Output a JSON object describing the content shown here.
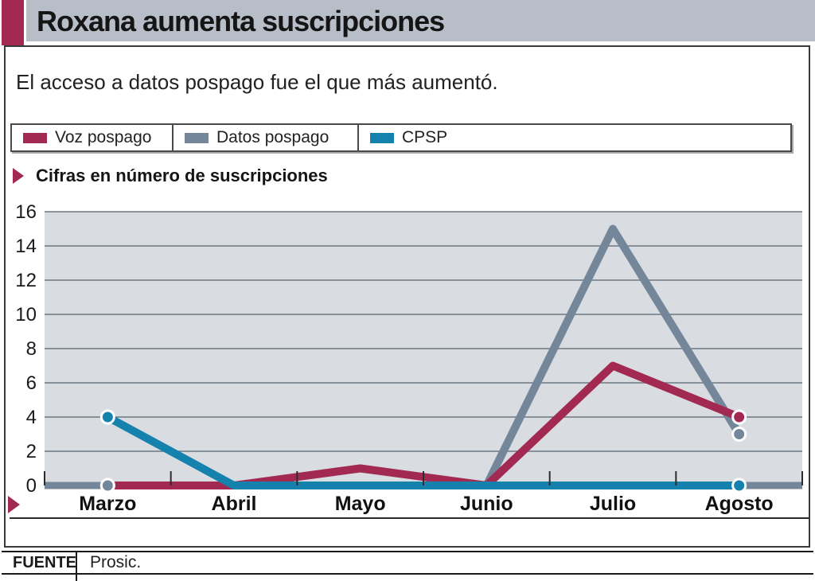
{
  "header": {
    "title": "Roxana aumenta suscripciones"
  },
  "subtitle": "El acceso a datos pospago fue el que más aumentó.",
  "legend": {
    "items": [
      {
        "label": "Voz pospago",
        "color": "#a22a52"
      },
      {
        "label": "Datos pospago",
        "color": "#74879a"
      },
      {
        "label": "CPSP",
        "color": "#1581ad"
      }
    ]
  },
  "chart_note": "Cifras en número de suscripciones",
  "chart_data": {
    "type": "line",
    "title": "Roxana aumenta suscripciones",
    "categories": [
      "Marzo",
      "Abril",
      "Mayo",
      "Junio",
      "Julio",
      "Agosto"
    ],
    "series": [
      {
        "name": "Voz pospago",
        "color": "#a22a52",
        "values": [
          0,
          0,
          1,
          0,
          7,
          4
        ]
      },
      {
        "name": "Datos pospago",
        "color": "#74879a",
        "values": [
          0,
          0,
          0,
          0,
          15,
          3
        ]
      },
      {
        "name": "CPSP",
        "color": "#1581ad",
        "values": [
          4,
          0,
          0,
          0,
          0,
          0
        ]
      }
    ],
    "ylim": [
      0,
      16
    ],
    "ytick_step": 2,
    "xlabel": "",
    "ylabel": "",
    "grid": true,
    "legend_position": "top",
    "markers": "endpoints",
    "draw_order": [
      "Datos pospago",
      "Voz pospago",
      "CPSP"
    ]
  },
  "footer": {
    "source_label": "FUENTE",
    "source_value": "Prosic."
  },
  "colors": {
    "accent_maroon": "#a22a52",
    "series_gray": "#74879a",
    "series_teal": "#1581ad",
    "title_bar_bg": "#b8bec8",
    "plot_bg": "#d9dce1",
    "grid_line": "#6e7682",
    "border_dark": "#3a3a3a",
    "tick": "#2b2b2b"
  }
}
